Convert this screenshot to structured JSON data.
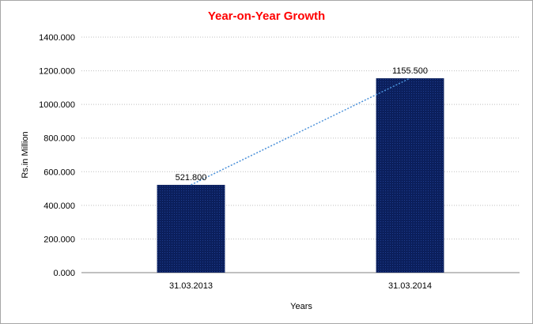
{
  "chart_data": {
    "type": "bar",
    "title": "Year-on-Year Growth",
    "xlabel": "Years",
    "ylabel": "Rs.in Million",
    "categories": [
      "31.03.2013",
      "31.03.2014"
    ],
    "values": [
      521.8,
      1155.5
    ],
    "data_labels": [
      "521.800",
      "1155.500"
    ],
    "ylim": [
      0,
      1400
    ],
    "y_ticks": [
      "0.000",
      "200.000",
      "400.000",
      "600.000",
      "800.000",
      "1000.000",
      "1200.000",
      "1400.000"
    ],
    "grid": true,
    "trendline": true,
    "legend": "none"
  },
  "colors": {
    "title": "#ff0000",
    "bar_fill": "#0b1f5c",
    "bar_pattern": "#1f3d8f",
    "trendline": "#4a90d9",
    "grid": "#bfbfbf",
    "axis": "#808080"
  }
}
